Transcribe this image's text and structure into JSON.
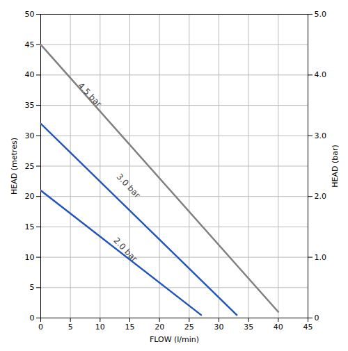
{
  "chart_data": {
    "type": "line",
    "xlabel": "FLOW (l/min)",
    "ylabel": "HEAD (metres)",
    "y2label": "HEAD (bar)",
    "series": [
      {
        "color": "#808080",
        "x": [
          0,
          40
        ],
        "values": [
          45,
          1
        ]
      },
      {
        "color": "#2255bb",
        "x": [
          0,
          33
        ],
        "values": [
          32,
          0.5
        ]
      },
      {
        "color": "#2255bb",
        "x": [
          0,
          27
        ],
        "values": [
          21,
          0.5
        ]
      }
    ],
    "annotations": [
      {
        "text": "4.5 bar",
        "x": 6.5,
        "y": 38.5
      },
      {
        "text": "3.0 bar",
        "x": 13,
        "y": 23.5
      },
      {
        "text": "2.0 bar",
        "x": 12.5,
        "y": 13.0
      }
    ],
    "xlim": [
      0,
      45
    ],
    "ylim": [
      0,
      50
    ],
    "xticks": [
      0,
      5,
      10,
      15,
      20,
      25,
      30,
      35,
      40,
      45
    ],
    "yticks": [
      0,
      5,
      10,
      15,
      20,
      25,
      30,
      35,
      40,
      45,
      50
    ],
    "y2lim": [
      0,
      5.0
    ],
    "y2ticks": [
      0,
      {
        "value": 1.0,
        "label": "1.0"
      },
      {
        "value": 2.0,
        "label": "2.0"
      },
      {
        "value": 3.0,
        "label": "3.0"
      },
      {
        "value": 4.0,
        "label": "4.0"
      },
      {
        "value": 5.0,
        "label": "5.0"
      }
    ],
    "grid": true
  }
}
